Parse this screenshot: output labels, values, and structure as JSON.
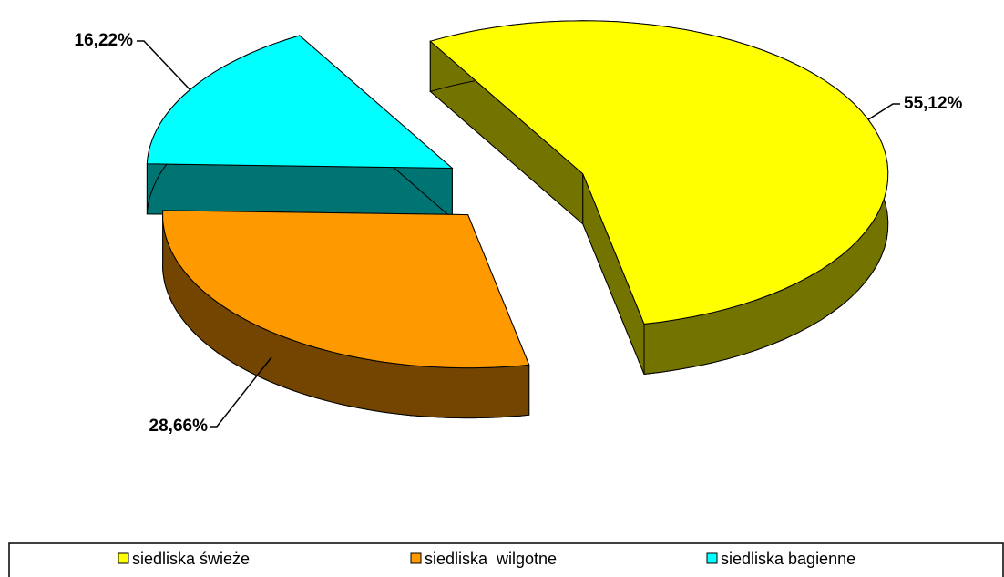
{
  "chart_data": {
    "type": "pie",
    "categories": [
      "siedliska świeże",
      "siedliska  wilgotne",
      "siedliska bagienne"
    ],
    "values": [
      55.12,
      28.66,
      16.22
    ],
    "value_labels": [
      "55,12%",
      "28,66%",
      "16,22%"
    ],
    "colors": [
      "#ffff00",
      "#ff9900",
      "#00ffff"
    ],
    "legend": "bottom"
  }
}
